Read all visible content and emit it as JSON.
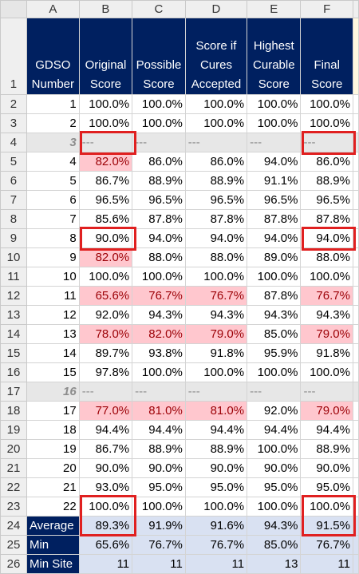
{
  "columns": [
    "A",
    "B",
    "C",
    "D",
    "E",
    "F"
  ],
  "headers": {
    "a": "GDSO Number",
    "b": "Original Score",
    "c": "Possible Score",
    "d": "Score if Cures Accepted",
    "e": "Highest Curable Score",
    "f": "Final Score"
  },
  "rows": [
    {
      "r": "2",
      "type": "data",
      "v": [
        "1",
        "100.0%",
        "100.0%",
        "100.0%",
        "100.0%",
        "100.0%"
      ],
      "pink": []
    },
    {
      "r": "3",
      "type": "data",
      "v": [
        "2",
        "100.0%",
        "100.0%",
        "100.0%",
        "100.0%",
        "100.0%"
      ],
      "pink": []
    },
    {
      "r": "4",
      "type": "gap",
      "v": [
        "3",
        "---",
        "---",
        "---",
        "---",
        "---"
      ]
    },
    {
      "r": "5",
      "type": "data",
      "v": [
        "4",
        "82.0%",
        "86.0%",
        "86.0%",
        "94.0%",
        "86.0%"
      ],
      "pink": [
        1
      ]
    },
    {
      "r": "6",
      "type": "data",
      "v": [
        "5",
        "86.7%",
        "88.9%",
        "88.9%",
        "91.1%",
        "88.9%"
      ],
      "pink": []
    },
    {
      "r": "7",
      "type": "data",
      "v": [
        "6",
        "96.5%",
        "96.5%",
        "96.5%",
        "96.5%",
        "96.5%"
      ],
      "pink": []
    },
    {
      "r": "8",
      "type": "data",
      "v": [
        "7",
        "85.6%",
        "87.8%",
        "87.8%",
        "87.8%",
        "87.8%"
      ],
      "pink": []
    },
    {
      "r": "9",
      "type": "data",
      "v": [
        "8",
        "90.0%",
        "94.0%",
        "94.0%",
        "94.0%",
        "94.0%"
      ],
      "pink": []
    },
    {
      "r": "10",
      "type": "data",
      "v": [
        "9",
        "82.0%",
        "88.0%",
        "88.0%",
        "89.0%",
        "88.0%"
      ],
      "pink": [
        1
      ]
    },
    {
      "r": "11",
      "type": "data",
      "v": [
        "10",
        "100.0%",
        "100.0%",
        "100.0%",
        "100.0%",
        "100.0%"
      ],
      "pink": []
    },
    {
      "r": "12",
      "type": "data",
      "v": [
        "11",
        "65.6%",
        "76.7%",
        "76.7%",
        "87.8%",
        "76.7%"
      ],
      "pink": [
        1,
        2,
        3,
        5
      ]
    },
    {
      "r": "13",
      "type": "data",
      "v": [
        "12",
        "92.0%",
        "94.3%",
        "94.3%",
        "94.3%",
        "94.3%"
      ],
      "pink": []
    },
    {
      "r": "14",
      "type": "data",
      "v": [
        "13",
        "78.0%",
        "82.0%",
        "79.0%",
        "85.0%",
        "79.0%"
      ],
      "pink": [
        1,
        2,
        3,
        5
      ]
    },
    {
      "r": "15",
      "type": "data",
      "v": [
        "14",
        "89.7%",
        "93.8%",
        "91.8%",
        "95.9%",
        "91.8%"
      ],
      "pink": []
    },
    {
      "r": "16",
      "type": "data",
      "v": [
        "15",
        "97.8%",
        "100.0%",
        "100.0%",
        "100.0%",
        "100.0%"
      ],
      "pink": []
    },
    {
      "r": "17",
      "type": "gap",
      "v": [
        "16",
        "---",
        "---",
        "---",
        "---",
        "---"
      ]
    },
    {
      "r": "18",
      "type": "data",
      "v": [
        "17",
        "77.0%",
        "81.0%",
        "81.0%",
        "92.0%",
        "79.0%"
      ],
      "pink": [
        1,
        2,
        3,
        5
      ]
    },
    {
      "r": "19",
      "type": "data",
      "v": [
        "18",
        "94.4%",
        "94.4%",
        "94.4%",
        "94.4%",
        "94.4%"
      ],
      "pink": []
    },
    {
      "r": "20",
      "type": "data",
      "v": [
        "19",
        "86.7%",
        "88.9%",
        "88.9%",
        "100.0%",
        "88.9%"
      ],
      "pink": []
    },
    {
      "r": "21",
      "type": "data",
      "v": [
        "20",
        "90.0%",
        "90.0%",
        "90.0%",
        "90.0%",
        "90.0%"
      ],
      "pink": []
    },
    {
      "r": "22",
      "type": "data",
      "v": [
        "21",
        "93.0%",
        "95.0%",
        "95.0%",
        "95.0%",
        "95.0%"
      ],
      "pink": []
    },
    {
      "r": "23",
      "type": "data",
      "v": [
        "22",
        "100.0%",
        "100.0%",
        "100.0%",
        "100.0%",
        "100.0%"
      ],
      "pink": []
    },
    {
      "r": "24",
      "type": "sum",
      "v": [
        "Average",
        "89.3%",
        "91.9%",
        "91.6%",
        "94.3%",
        "91.5%"
      ]
    },
    {
      "r": "25",
      "type": "sum",
      "v": [
        "Min",
        "65.6%",
        "76.7%",
        "76.7%",
        "85.0%",
        "76.7%"
      ]
    },
    {
      "r": "26",
      "type": "sum",
      "v": [
        "Min Site",
        "11",
        "11",
        "11",
        "13",
        "11"
      ]
    }
  ],
  "colors": {
    "header_bg": "#002060",
    "highlight": "#e02020",
    "pink": "#ffc7ce",
    "summary": "#d9e1f2"
  }
}
